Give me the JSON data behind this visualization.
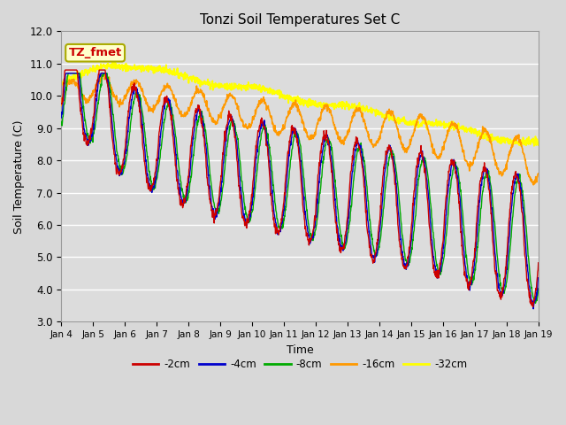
{
  "title": "Tonzi Soil Temperatures Set C",
  "xlabel": "Time",
  "ylabel": "Soil Temperature (C)",
  "ylim": [
    3.0,
    12.0
  ],
  "yticks": [
    3.0,
    4.0,
    5.0,
    6.0,
    7.0,
    8.0,
    9.0,
    10.0,
    11.0,
    12.0
  ],
  "xtick_labels": [
    "Jan 4",
    "Jan 5",
    "Jan 6",
    "Jan 7",
    "Jan 8",
    "Jan 9",
    "Jan 10",
    "Jan 11",
    "Jan 12",
    "Jan 13",
    "Jan 14",
    "Jan 15",
    "Jan 16",
    "Jan 17",
    "Jan 18",
    "Jan 19"
  ],
  "colors": {
    "-2cm": "#cc0000",
    "-4cm": "#0000cc",
    "-8cm": "#00aa00",
    "-16cm": "#ff9900",
    "-32cm": "#ffff00"
  },
  "annotation_text": "TZ_fmet",
  "annotation_color": "#cc0000",
  "annotation_bg": "#ffffcc",
  "linewidth": 1.0,
  "fig_bg": "#d8d8d8",
  "plot_bg": "#dcdcdc"
}
